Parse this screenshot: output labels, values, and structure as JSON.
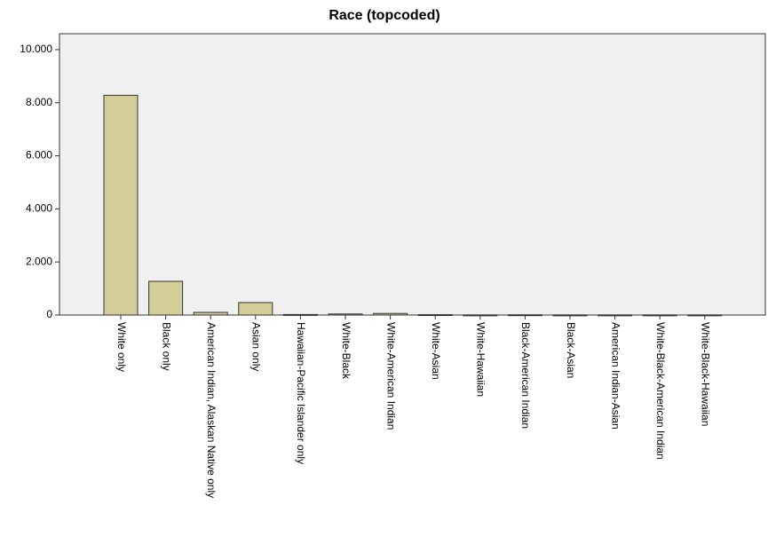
{
  "chart_data": {
    "type": "bar",
    "title": "Race (topcoded)",
    "categories": [
      "White only",
      "Black only",
      "American Indian, Alaskan Native only",
      "Asian only",
      "Hawaiian-Pacific Islander only",
      "White-Black",
      "White-American Indian",
      "White-Asian",
      "White-Hawaiian",
      "Black-American Indian",
      "Black-Asian",
      "American Indian-Asian",
      "White-Black-American Indian",
      "White-Black-Hawaiian"
    ],
    "values": [
      8280,
      1270,
      100,
      470,
      20,
      40,
      60,
      15,
      5,
      10,
      5,
      5,
      5,
      5
    ],
    "color": "#d3ce98",
    "ylim": [
      0,
      10600
    ],
    "yticks": [
      0,
      {
        "value": 2000,
        "label": "2.000"
      },
      {
        "value": 4000,
        "label": "4.000"
      },
      {
        "value": 6000,
        "label": "6.000"
      },
      {
        "value": 8000,
        "label": "8.000"
      },
      {
        "value": 10000,
        "label": "10.000"
      }
    ],
    "grid": false
  }
}
